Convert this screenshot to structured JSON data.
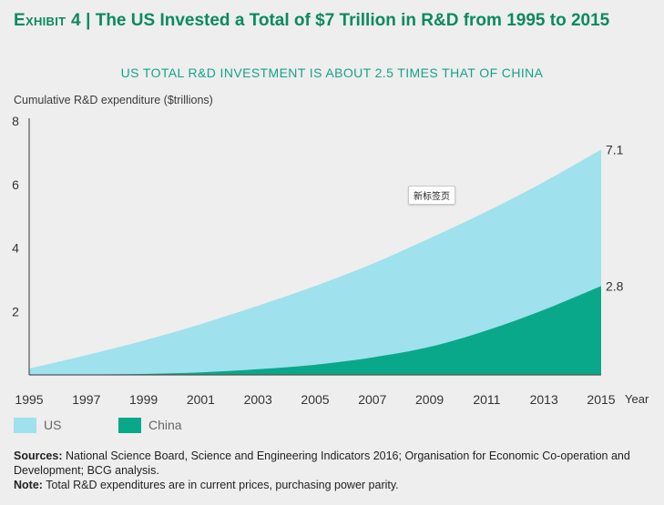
{
  "header": {
    "exhibit_label": "Exhibit 4",
    "separator": " | ",
    "title": "The US Invested a Total of $7 Trillion in R&D from 1995 to 2015"
  },
  "chart_data": {
    "type": "area",
    "title": "US TOTAL R&D INVESTMENT IS ABOUT 2.5 TIMES THAT OF CHINA",
    "ylabel": "Cumulative R&D expenditure ($trillions)",
    "xlabel": "Year",
    "ylim": [
      0,
      8
    ],
    "yticks": [
      2,
      4,
      6,
      8
    ],
    "x": [
      1995,
      1997,
      1999,
      2001,
      2003,
      2005,
      2007,
      2009,
      2011,
      2013,
      2015
    ],
    "xticks": [
      "1995",
      "1997",
      "1999",
      "2001",
      "2003",
      "2005",
      "2007",
      "2009",
      "2011",
      "2013",
      "2015"
    ],
    "series": [
      {
        "name": "US",
        "color": "#9fe1ec",
        "values": [
          0.2,
          0.62,
          1.08,
          1.6,
          2.18,
          2.8,
          3.5,
          4.3,
          5.15,
          6.08,
          7.1
        ],
        "end_label": "7.1"
      },
      {
        "name": "China",
        "color": "#0aa88a",
        "values": [
          0.0,
          0.01,
          0.03,
          0.08,
          0.18,
          0.32,
          0.55,
          0.88,
          1.4,
          2.05,
          2.8
        ],
        "end_label": "2.8"
      }
    ],
    "legend_position": "bottom-left"
  },
  "notes": {
    "sources_label": "Sources:",
    "sources_text": "National Science Board, Science and Engineering Indicators 2016; Organisation for Economic Co-operation and Development; BCG analysis.",
    "note_label": "Note:",
    "note_text": "Total R&D expenditures are in current prices, purchasing power parity."
  },
  "tooltip": {
    "text": "新标签页"
  }
}
